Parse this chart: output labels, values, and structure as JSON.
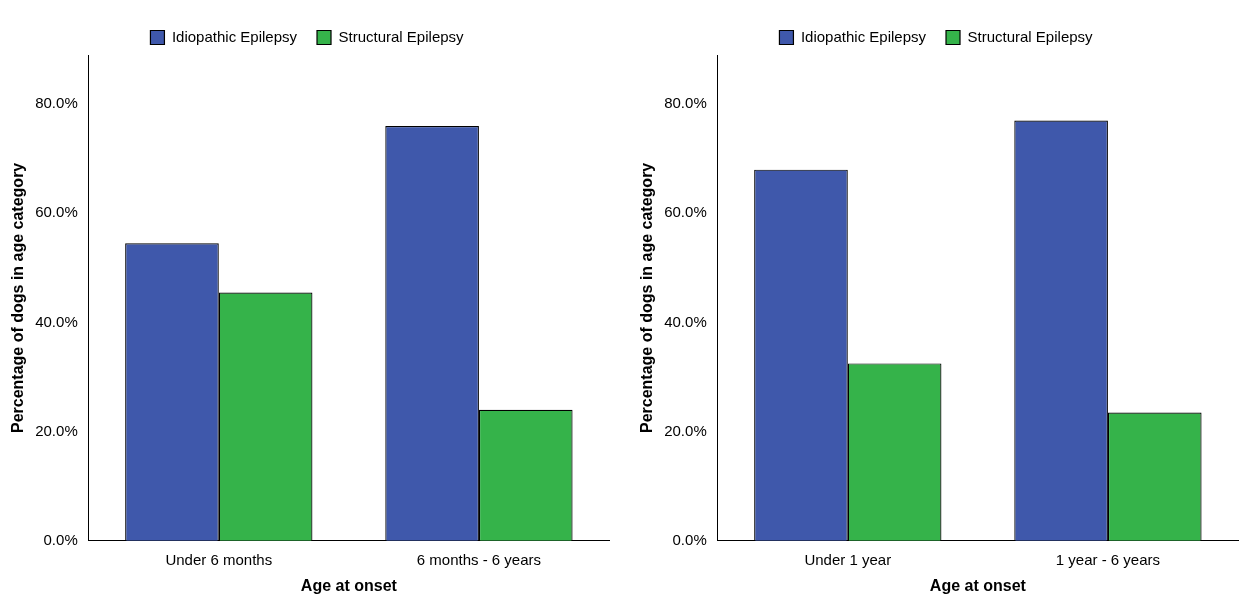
{
  "chart_data": [
    {
      "type": "bar",
      "xlabel": "Age at onset",
      "ylabel": "Percentage of dogs in age category",
      "categories": [
        "Under 6 months",
        "6 months - 6 years"
      ],
      "series": [
        {
          "name": "Idiopathic Epilepsy",
          "color": "#3f58ab",
          "values": [
            54.5,
            76
          ]
        },
        {
          "name": "Structural Epilepsy",
          "color": "#35b34a",
          "values": [
            45.5,
            24
          ]
        }
      ],
      "ylim": [
        0,
        89
      ],
      "yticks": [
        {
          "value": 0,
          "label": "0.0%"
        },
        {
          "value": 20,
          "label": "20.0%"
        },
        {
          "value": 40,
          "label": "40.0%"
        },
        {
          "value": 60,
          "label": "60.0%"
        },
        {
          "value": 80,
          "label": "80.0%"
        }
      ],
      "grid": false,
      "legend": "top"
    },
    {
      "type": "bar",
      "xlabel": "Age at onset",
      "ylabel": "Percentage of dogs in age category",
      "categories": [
        "Under 1 year",
        "1 year - 6 years"
      ],
      "series": [
        {
          "name": "Idiopathic Epilepsy",
          "color": "#3f58ab",
          "values": [
            68,
            77
          ]
        },
        {
          "name": "Structural Epilepsy",
          "color": "#35b34a",
          "values": [
            32.5,
            23.5
          ]
        }
      ],
      "ylim": [
        0,
        89
      ],
      "yticks": [
        {
          "value": 0,
          "label": "0.0%"
        },
        {
          "value": 20,
          "label": "20.0%"
        },
        {
          "value": 40,
          "label": "40.0%"
        },
        {
          "value": 60,
          "label": "60.0%"
        },
        {
          "value": 80,
          "label": "80.0%"
        }
      ],
      "grid": false,
      "legend": "top"
    }
  ]
}
